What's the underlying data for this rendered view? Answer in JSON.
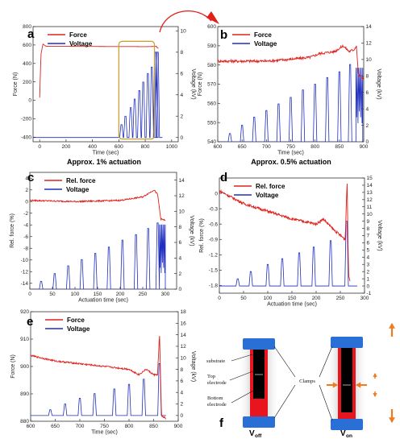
{
  "chart_data": [
    {
      "id": "a",
      "letter": "a",
      "type": "line",
      "xlabel": "Time (sec)",
      "ylabel": "Force (N)",
      "y2label": "Voltage (kV)",
      "xlim": [
        -50,
        1050
      ],
      "ylim": [
        -450,
        800
      ],
      "y2lim": [
        -0.4,
        10.4
      ],
      "xticks": [
        0,
        200,
        400,
        600,
        800,
        1000
      ],
      "yticks": [
        -400,
        -200,
        0,
        200,
        400,
        600,
        800
      ],
      "y2ticks": [
        0,
        2,
        4,
        6,
        8,
        10
      ],
      "legend": [
        "Force",
        "Voltage"
      ],
      "force": {
        "points": [
          [
            0,
            30
          ],
          [
            10,
            500
          ],
          [
            25,
            610
          ],
          [
            50,
            585
          ],
          [
            200,
            585
          ],
          [
            400,
            584
          ],
          [
            600,
            583
          ],
          [
            700,
            583
          ],
          [
            800,
            582
          ],
          [
            860,
            584
          ],
          [
            885,
            588
          ],
          [
            890,
            570
          ],
          [
            900,
            565
          ]
        ]
      },
      "voltage": {
        "baseline": 0,
        "end": 930,
        "peaks": [
          [
            620,
            1.2
          ],
          [
            650,
            2.0
          ],
          [
            690,
            2.8
          ],
          [
            720,
            3.6
          ],
          [
            755,
            4.4
          ],
          [
            785,
            5.2
          ],
          [
            820,
            6.0
          ],
          [
            850,
            6.6
          ],
          [
            875,
            8.0
          ],
          [
            885,
            8.0
          ],
          [
            895,
            8.0
          ]
        ]
      },
      "highlight": [
        600,
        870,
        -420,
        640
      ]
    },
    {
      "id": "b",
      "letter": "b",
      "type": "line",
      "xlabel": "Time (sec)",
      "ylabel": "Force (N)",
      "y2label": "Voltage (kV)",
      "xlim": [
        600,
        900
      ],
      "ylim": [
        540,
        600
      ],
      "y2lim": [
        0,
        14
      ],
      "xticks": [
        600,
        650,
        700,
        750,
        800,
        850,
        900
      ],
      "yticks": [
        540,
        550,
        560,
        570,
        580,
        590,
        600
      ],
      "y2ticks": [
        0,
        2,
        4,
        6,
        8,
        10,
        12,
        14
      ],
      "legend": [
        "Force",
        "Voltage"
      ],
      "force": {
        "noise": 0.7,
        "points": [
          [
            600,
            582
          ],
          [
            650,
            582
          ],
          [
            700,
            582
          ],
          [
            750,
            583
          ],
          [
            790,
            584
          ],
          [
            810,
            586
          ],
          [
            840,
            587
          ],
          [
            858,
            590
          ],
          [
            870,
            587
          ],
          [
            880,
            588
          ],
          [
            885,
            590
          ],
          [
            889,
            575
          ],
          [
            893,
            574
          ],
          [
            900,
            573
          ]
        ]
      },
      "voltage": {
        "baseline": 0,
        "end": 900,
        "peaks": [
          [
            625,
            1.0
          ],
          [
            650,
            2.0
          ],
          [
            675,
            3.0
          ],
          [
            700,
            3.8
          ],
          [
            725,
            4.6
          ],
          [
            750,
            5.4
          ],
          [
            775,
            6.3
          ],
          [
            800,
            7.0
          ],
          [
            825,
            7.8
          ],
          [
            850,
            8.5
          ],
          [
            872,
            9.4
          ]
        ],
        "plateau": [
          884,
          898,
          9.0
        ]
      }
    },
    {
      "id": "c",
      "letter": "c",
      "type": "line",
      "caption": "Approx. 1% actuation",
      "xlabel": "Actuation time (sec)",
      "ylabel": "Rel. force (%)",
      "y2label": "Voltage (kV)",
      "xlim": [
        0,
        325
      ],
      "ylim": [
        -15,
        5
      ],
      "y2lim": [
        0,
        15
      ],
      "xticks": [
        0,
        50,
        100,
        150,
        200,
        250,
        300
      ],
      "yticks": [
        -14,
        -12,
        -10,
        -8,
        -6,
        -4,
        -2,
        0,
        2,
        4
      ],
      "y2ticks": [
        0,
        2,
        4,
        6,
        8,
        10,
        12,
        14
      ],
      "legend": [
        "Rel. force",
        "Voltage"
      ],
      "force": {
        "noise": 0.12,
        "points": [
          [
            0,
            0.2
          ],
          [
            100,
            0.0
          ],
          [
            200,
            0.2
          ],
          [
            250,
            0.8
          ],
          [
            275,
            2.0
          ],
          [
            283,
            1.2
          ],
          [
            290,
            -3.0
          ],
          [
            300,
            -3.2
          ]
        ]
      },
      "voltage": {
        "baseline": 0,
        "end": 305,
        "peaks": [
          [
            25,
            1.0
          ],
          [
            55,
            2.0
          ],
          [
            85,
            3.0
          ],
          [
            115,
            3.8
          ],
          [
            145,
            4.6
          ],
          [
            175,
            5.4
          ],
          [
            205,
            6.3
          ],
          [
            235,
            7.0
          ],
          [
            262,
            7.8
          ],
          [
            283,
            8.5
          ]
        ],
        "plateau": [
          287,
          300,
          8.3
        ]
      }
    },
    {
      "id": "d",
      "letter": "d",
      "type": "line",
      "caption": "Approx. 0.5% actuation",
      "xlabel": "Actuation time (sec)",
      "ylabel": "Rel. force (%)",
      "y2label": "Voltage (kV)",
      "xlim": [
        0,
        300
      ],
      "ylim": [
        -1.95,
        0.3
      ],
      "y2lim": [
        -1,
        15
      ],
      "xticks": [
        0,
        50,
        100,
        150,
        200,
        250,
        300
      ],
      "yticks": [
        -1.8,
        -1.5,
        -1.2,
        -0.9,
        -0.6,
        -0.3,
        0.0
      ],
      "y2ticks": [
        -1,
        0,
        1,
        2,
        3,
        4,
        5,
        6,
        7,
        8,
        9,
        10,
        11,
        12,
        13,
        14,
        15
      ],
      "legend": [
        "Rel. force",
        "Voltage"
      ],
      "force": {
        "noise": 0.025,
        "points": [
          [
            0,
            0.05
          ],
          [
            50,
            -0.2
          ],
          [
            100,
            -0.35
          ],
          [
            150,
            -0.5
          ],
          [
            200,
            -0.6
          ],
          [
            215,
            -0.5
          ],
          [
            235,
            -0.7
          ],
          [
            260,
            -0.9
          ],
          [
            264,
            0.25
          ],
          [
            267,
            -1.6
          ],
          [
            270,
            -1.7
          ]
        ]
      },
      "voltage": {
        "baseline": 0,
        "end": 285,
        "peaks": [
          [
            38,
            1.0
          ],
          [
            65,
            2.0
          ],
          [
            100,
            3.0
          ],
          [
            130,
            3.8
          ],
          [
            165,
            4.6
          ],
          [
            195,
            5.4
          ],
          [
            230,
            6.3
          ],
          [
            263,
            9.0
          ]
        ]
      }
    },
    {
      "id": "e",
      "letter": "e",
      "type": "line",
      "xlabel": "Time (sec)",
      "ylabel": "Force (N)",
      "y2label": "Voltage (kV)",
      "xlim": [
        600,
        900
      ],
      "ylim": [
        880,
        920
      ],
      "y2lim": [
        -1,
        18
      ],
      "xticks": [
        600,
        650,
        700,
        750,
        800,
        850,
        900
      ],
      "yticks": [
        880,
        890,
        900,
        910,
        920
      ],
      "y2ticks": [
        0,
        2,
        4,
        6,
        8,
        10,
        12,
        14,
        16,
        18
      ],
      "legend": [
        "Force",
        "Voltage"
      ],
      "force": {
        "noise": 0.3,
        "points": [
          [
            600,
            904
          ],
          [
            650,
            902
          ],
          [
            700,
            901
          ],
          [
            750,
            900
          ],
          [
            800,
            899
          ],
          [
            820,
            897
          ],
          [
            835,
            899
          ],
          [
            850,
            897
          ],
          [
            858,
            897
          ],
          [
            862,
            912
          ],
          [
            866,
            882
          ],
          [
            875,
            881
          ]
        ]
      },
      "voltage": {
        "baseline": 0,
        "end": 875,
        "peaks": [
          [
            640,
            1.0
          ],
          [
            670,
            2.0
          ],
          [
            700,
            3.0
          ],
          [
            730,
            3.8
          ],
          [
            770,
            4.6
          ],
          [
            800,
            5.4
          ],
          [
            830,
            6.3
          ],
          [
            862,
            9.0
          ]
        ]
      }
    }
  ],
  "diagram_f": {
    "letter": "f",
    "labels": {
      "substrate": "substrate",
      "top": "Top",
      "top2": "electrode",
      "bottom": "Bottom",
      "bottom2": "electrode",
      "clamps": "Clamps"
    },
    "voff": {
      "main": "V",
      "sub": "off"
    },
    "von": {
      "main": "V",
      "sub": "on"
    }
  },
  "colors": {
    "force": "#e0201b",
    "voltage": "#1f2fbf",
    "clamp": "#2a6fd6",
    "electrode": "#000000",
    "substrate": "#e8141e",
    "arrow": "#f07b1f",
    "highlight": "#c9a23a"
  }
}
